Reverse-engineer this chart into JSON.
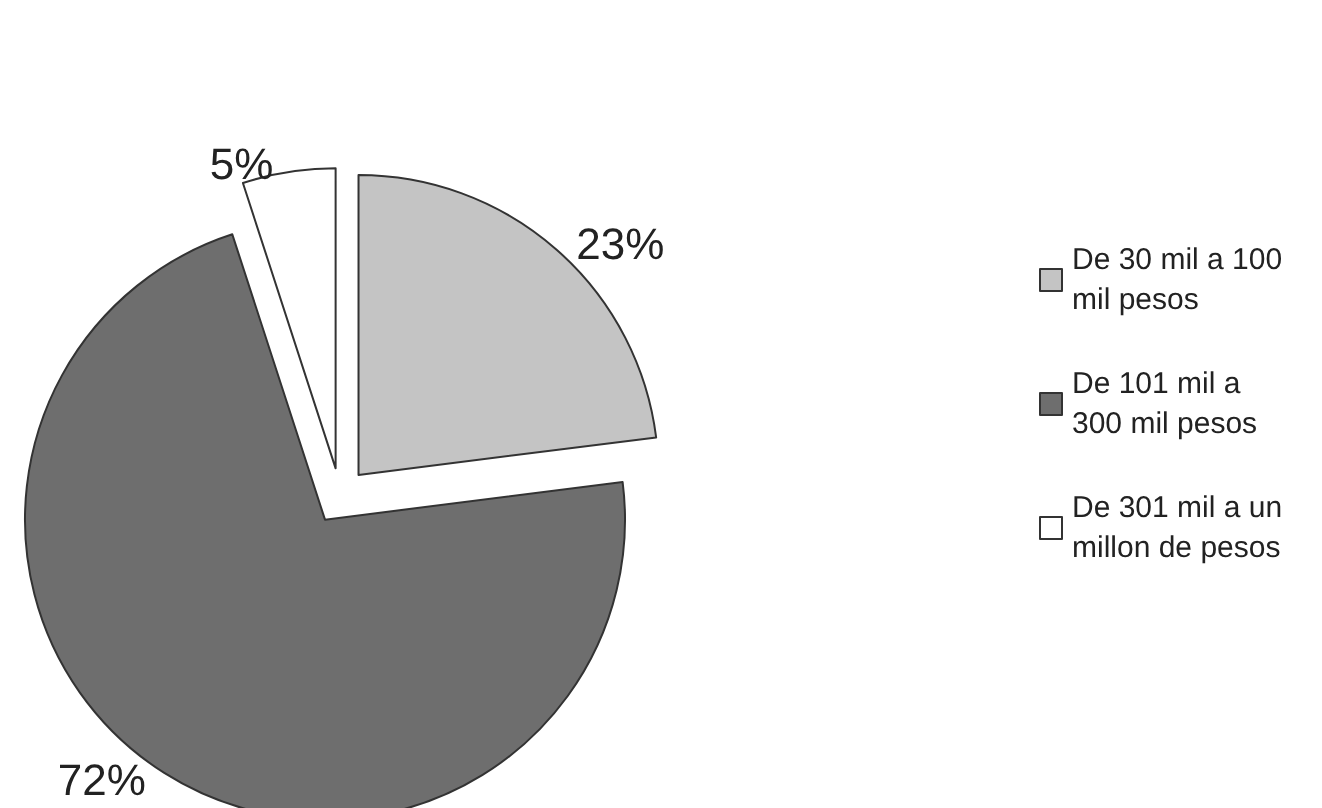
{
  "chart_data": {
    "type": "pie",
    "categories": [
      "De 30 mil a 100 mil pesos",
      "De 101 mil a 300 mil pesos",
      "De 301 mil a un millon de pesos"
    ],
    "values": [
      23,
      72,
      5
    ],
    "colors": [
      "#c4c4c4",
      "#6e6e6e",
      "#ffffff"
    ],
    "value_labels": [
      "23%",
      "72%",
      "5%"
    ],
    "legend": "right"
  }
}
